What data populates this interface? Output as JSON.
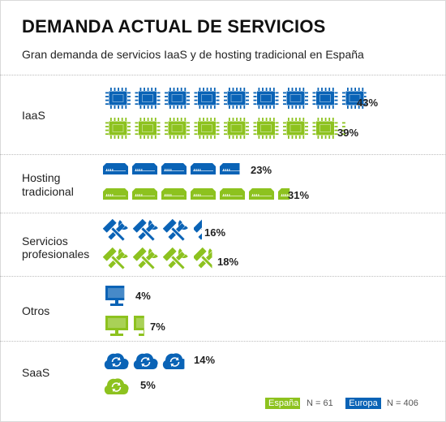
{
  "title": "DEMANDA ACTUAL DE SERVICIOS",
  "subtitle": "Gran demanda de servicios IaaS y de hosting tradicional en España",
  "colors": {
    "europa": "#0a63b6",
    "espana": "#8dc21f"
  },
  "legend": [
    {
      "label": "España",
      "n": "N = 61",
      "color": "#8dc21f"
    },
    {
      "label": "Europa",
      "n": "N = 406",
      "color": "#0a63b6"
    }
  ],
  "chart_data": {
    "type": "bar",
    "unit": "%",
    "categories": [
      "IaaS",
      "Hosting tradicional",
      "Servicios profesionales",
      "Otros",
      "SaaS"
    ],
    "category_labels": [
      [
        "IaaS"
      ],
      [
        "Hosting",
        "tradicional"
      ],
      [
        "Servicios",
        "profesionales"
      ],
      [
        "Otros"
      ],
      [
        "SaaS"
      ]
    ],
    "icons": [
      "cpu-chip-icon",
      "server-icon",
      "tools-icon",
      "monitor-icon",
      "cloud-sync-icon"
    ],
    "series": [
      {
        "name": "Europa",
        "values": [
          43,
          23,
          16,
          4,
          14
        ],
        "labels": [
          "43%",
          "23%",
          "16%",
          "4%",
          "14%"
        ]
      },
      {
        "name": "España",
        "values": [
          39,
          31,
          18,
          7,
          5
        ],
        "labels": [
          "39%",
          "31%",
          "18%",
          "7%",
          "5%"
        ]
      }
    ]
  }
}
